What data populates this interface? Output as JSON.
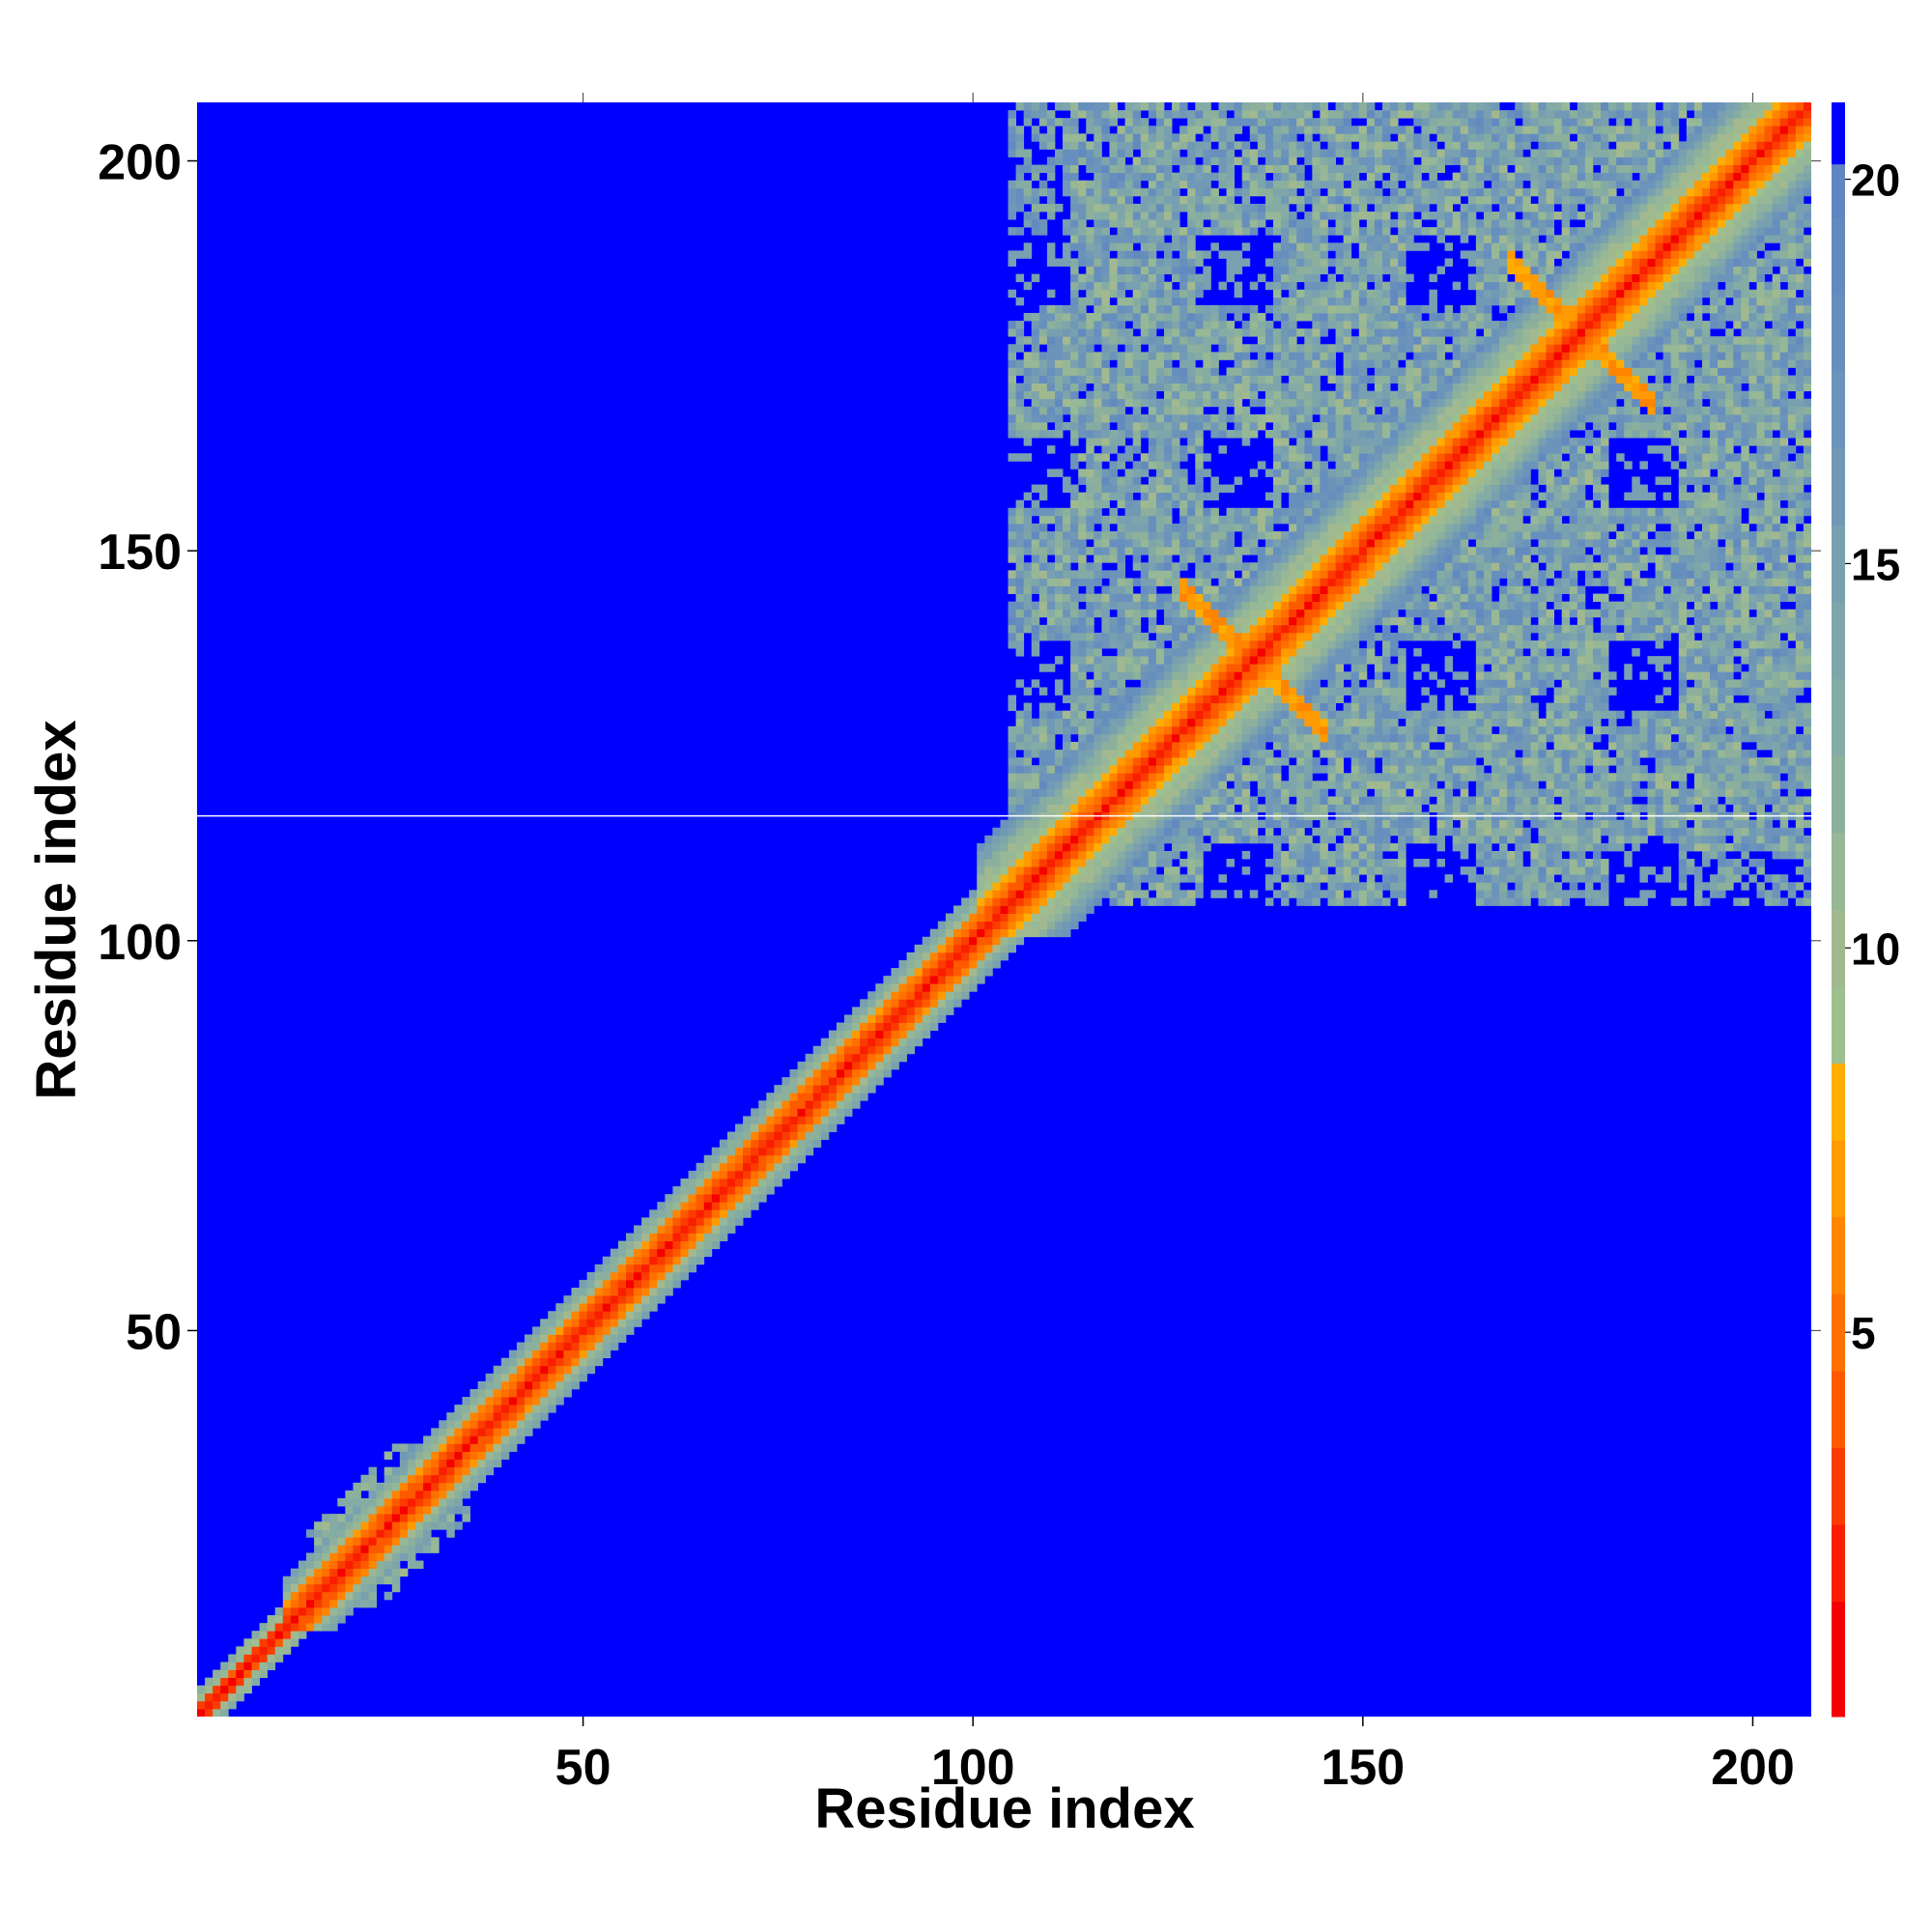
{
  "chart_data": {
    "type": "heatmap",
    "title": "",
    "xlabel": "Residue index",
    "ylabel": "Residue index",
    "xlim": [
      0.5,
      207.5
    ],
    "ylim": [
      0.5,
      207.5
    ],
    "n_residues": 207,
    "x_ticks": [
      50,
      100,
      150,
      200
    ],
    "x_tick_labels": [
      "50",
      "100",
      "150",
      "200"
    ],
    "y_ticks": [
      50,
      100,
      150,
      200
    ],
    "y_tick_labels": [
      "50",
      "100",
      "150",
      "200"
    ],
    "colorbar": {
      "range": [
        0,
        21
      ],
      "ticks": [
        5,
        10,
        15,
        20
      ],
      "tick_labels": [
        "5",
        "10",
        "15",
        "20"
      ],
      "levels": [
        {
          "upto": 1.5,
          "color": "#f50000"
        },
        {
          "upto": 2.5,
          "color": "#fa1e00"
        },
        {
          "upto": 3.5,
          "color": "#fb3c00"
        },
        {
          "upto": 4.5,
          "color": "#fd5a00"
        },
        {
          "upto": 5.5,
          "color": "#ff7000"
        },
        {
          "upto": 6.5,
          "color": "#ff8400"
        },
        {
          "upto": 7.5,
          "color": "#ff9a00"
        },
        {
          "upto": 8.5,
          "color": "#ffad00"
        },
        {
          "upto": 9.5,
          "color": "#9ebf8e"
        },
        {
          "upto": 10.5,
          "color": "#a2b990"
        },
        {
          "upto": 11.5,
          "color": "#96b896"
        },
        {
          "upto": 12.5,
          "color": "#8cb09c"
        },
        {
          "upto": 13.5,
          "color": "#85aca4"
        },
        {
          "upto": 14.5,
          "color": "#7ea6aa"
        },
        {
          "upto": 15.5,
          "color": "#78a0b0"
        },
        {
          "upto": 16.5,
          "color": "#7199b5"
        },
        {
          "upto": 17.5,
          "color": "#6c94ba"
        },
        {
          "upto": 18.5,
          "color": "#678fbd"
        },
        {
          "upto": 19.5,
          "color": "#638abf"
        },
        {
          "upto": 20.2,
          "color": "#5f86c2"
        },
        {
          "upto": 21,
          "color": "#0000ff"
        }
      ]
    },
    "cutoff_value": 21,
    "background_color": "#0000ff",
    "grid": false,
    "legend": "colorbar-right",
    "regions": {
      "diagonal_band_halfwidth_residues": 6,
      "diagonal_band_halfwidth_residues_C_term": 11,
      "contact_domain_range": [
        105,
        207
      ],
      "n_terminal_patch_range": [
        15,
        35
      ],
      "minor_cross_centers": [
        [
          178,
          178
        ],
        [
          136,
          136
        ]
      ],
      "horizontal_line_at_residue": 116
    }
  }
}
